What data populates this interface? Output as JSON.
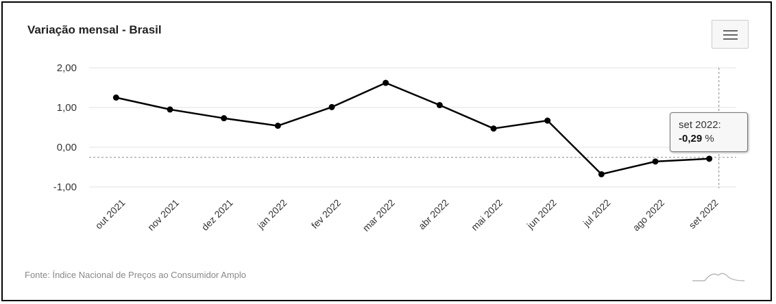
{
  "chart_data": {
    "type": "line",
    "title": "Variação mensal - Brasil",
    "categories": [
      "out 2021",
      "nov 2021",
      "dez 2021",
      "jan 2022",
      "fev 2022",
      "mar 2022",
      "abr 2022",
      "mai 2022",
      "jun 2022",
      "jul 2022",
      "ago 2022",
      "set 2022"
    ],
    "series": [
      {
        "values": [
          1.25,
          0.95,
          0.73,
          0.54,
          1.01,
          1.62,
          1.06,
          0.47,
          0.67,
          -0.68,
          -0.36,
          -0.29
        ]
      }
    ],
    "y_ticks": [
      "2,00",
      "1,00",
      "0,00",
      "-1,00"
    ],
    "ylim": [
      -1,
      2
    ],
    "grid": true,
    "line_color": "#000000",
    "tooltip": {
      "category": "set 2022:",
      "value": "-0,29",
      "unit": "%"
    },
    "source": "Fonte: Índice Nacional de Preços ao Consumidor Amplo"
  },
  "icons": {
    "menu": "hamburger-menu-icon",
    "logo": "chart-logo-icon"
  }
}
